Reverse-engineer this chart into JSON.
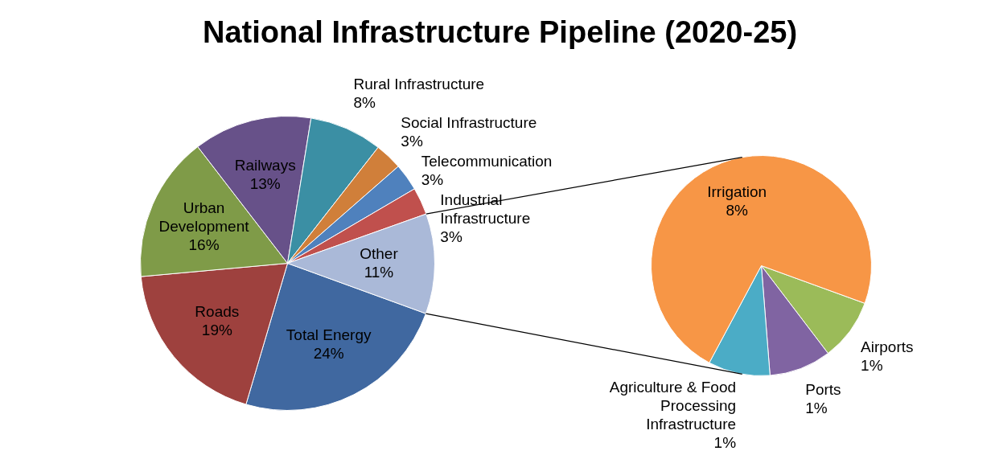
{
  "chart_data": [
    {
      "type": "pie",
      "title": "National Infrastructure Pipeline (2020-25)",
      "categories": [
        "Total Energy",
        "Roads",
        "Urban Development",
        "Railways",
        "Rural Infrastructure",
        "Social Infrastructure",
        "Telecommunication",
        "Industrial Infrastructure",
        "Other"
      ],
      "values": [
        24,
        19,
        16,
        13,
        8,
        3,
        3,
        3,
        11
      ],
      "colors": [
        "#4068a0",
        "#9e413e",
        "#7f9b48",
        "#675189",
        "#3b8fa4",
        "#d07f3a",
        "#4f81bd",
        "#c0504d",
        "#aab9d8"
      ],
      "value_labels": [
        "24%",
        "19%",
        "16%",
        "13%",
        "8%",
        "3%",
        "3%",
        "3%",
        "11%"
      ]
    },
    {
      "type": "pie",
      "categories": [
        "Airports",
        "Ports",
        "Agriculture & Food Processing Infrastructure",
        "Irrigation"
      ],
      "values": [
        1,
        1,
        1,
        8
      ],
      "colors": [
        "#9bbb59",
        "#8064a2",
        "#4bacc6",
        "#f79646"
      ],
      "value_labels": [
        "1%",
        "1%",
        "1%",
        "8%"
      ]
    }
  ]
}
